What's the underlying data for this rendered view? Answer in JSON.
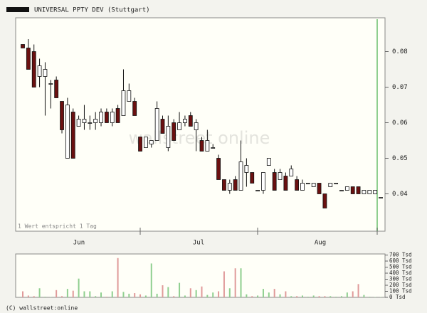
{
  "chart_data": {
    "type": "candlestick",
    "title": "UNIVERSAL PPTY DEV (Stuttgart)",
    "watermark": "wallstreet online",
    "note": "1 Wert entspricht 1 Tag",
    "copyright": "(C) wallstreet:online",
    "x_labels": [
      "Jun",
      "Jul",
      "Aug"
    ],
    "ylim": [
      0.0295,
      0.0895
    ],
    "yticks": [
      0.04,
      0.05,
      0.06,
      0.07,
      0.08
    ],
    "colors": {
      "up": "#ffffff",
      "down": "#6b1010",
      "volume_up": "#8fcf8f",
      "volume_down": "#e09a9a"
    },
    "ohlc": [
      [
        0.082,
        0.082,
        0.081,
        0.081
      ],
      [
        0.081,
        0.0835,
        0.075,
        0.075
      ],
      [
        0.08,
        0.082,
        0.07,
        0.07
      ],
      [
        0.073,
        0.078,
        0.07,
        0.076
      ],
      [
        0.073,
        0.077,
        0.062,
        0.075
      ],
      [
        0.071,
        0.072,
        0.064,
        0.071
      ],
      [
        0.072,
        0.073,
        0.067,
        0.067
      ],
      [
        0.066,
        0.066,
        0.057,
        0.058
      ],
      [
        0.05,
        0.067,
        0.05,
        0.065
      ],
      [
        0.063,
        0.064,
        0.05,
        0.05
      ],
      [
        0.059,
        0.062,
        0.059,
        0.061
      ],
      [
        0.06,
        0.065,
        0.058,
        0.061
      ],
      [
        0.06,
        0.062,
        0.058,
        0.06
      ],
      [
        0.06,
        0.063,
        0.058,
        0.061
      ],
      [
        0.06,
        0.064,
        0.059,
        0.063
      ],
      [
        0.063,
        0.064,
        0.06,
        0.06
      ],
      [
        0.06,
        0.064,
        0.059,
        0.063
      ],
      [
        0.064,
        0.065,
        0.06,
        0.06
      ],
      [
        0.062,
        0.075,
        0.062,
        0.069
      ],
      [
        0.066,
        0.071,
        0.066,
        0.069
      ],
      [
        0.066,
        0.067,
        0.062,
        0.062
      ],
      [
        0.056,
        0.056,
        0.052,
        0.052
      ],
      [
        0.053,
        0.056,
        0.053,
        0.056
      ],
      [
        0.054,
        0.055,
        0.053,
        0.055
      ],
      [
        0.055,
        0.066,
        0.055,
        0.064
      ],
      [
        0.061,
        0.062,
        0.057,
        0.057
      ],
      [
        0.053,
        0.062,
        0.052,
        0.059
      ],
      [
        0.06,
        0.061,
        0.055,
        0.055
      ],
      [
        0.058,
        0.063,
        0.058,
        0.06
      ],
      [
        0.06,
        0.062,
        0.059,
        0.061
      ],
      [
        0.062,
        0.063,
        0.059,
        0.059
      ],
      [
        0.058,
        0.061,
        0.052,
        0.06
      ],
      [
        0.055,
        0.056,
        0.052,
        0.052
      ],
      [
        0.052,
        0.058,
        0.052,
        0.055
      ],
      [
        0.053,
        0.054,
        0.053,
        0.053
      ],
      [
        0.05,
        0.051,
        0.044,
        0.044
      ],
      [
        0.044,
        0.044,
        0.041,
        0.041
      ],
      [
        0.041,
        0.044,
        0.04,
        0.043
      ],
      [
        0.044,
        0.045,
        0.041,
        0.041
      ],
      [
        0.041,
        0.055,
        0.041,
        0.049
      ],
      [
        0.046,
        0.05,
        0.042,
        0.048
      ],
      [
        0.046,
        0.046,
        0.043,
        0.043
      ],
      [
        0.041,
        0.041,
        0.041,
        0.041
      ],
      [
        0.041,
        0.046,
        0.04,
        0.046
      ],
      [
        0.048,
        0.05,
        0.048,
        0.05
      ],
      [
        0.046,
        0.047,
        0.041,
        0.041
      ],
      [
        0.044,
        0.047,
        0.044,
        0.046
      ],
      [
        0.045,
        0.046,
        0.041,
        0.041
      ],
      [
        0.045,
        0.048,
        0.045,
        0.047
      ],
      [
        0.044,
        0.045,
        0.041,
        0.041
      ],
      [
        0.041,
        0.044,
        0.041,
        0.043
      ],
      [
        0.043,
        0.043,
        0.043,
        0.043
      ],
      [
        0.042,
        0.043,
        0.042,
        0.043
      ],
      [
        0.043,
        0.043,
        0.04,
        0.04
      ],
      [
        0.04,
        0.04,
        0.036,
        0.036
      ],
      [
        0.042,
        0.043,
        0.042,
        0.043
      ],
      [
        0.043,
        0.043,
        0.043,
        0.043
      ],
      [
        0.041,
        0.041,
        0.041,
        0.041
      ],
      [
        0.041,
        0.042,
        0.041,
        0.042
      ],
      [
        0.042,
        0.042,
        0.04,
        0.04
      ],
      [
        0.042,
        0.042,
        0.04,
        0.04
      ],
      [
        0.04,
        0.041,
        0.04,
        0.041
      ],
      [
        0.04,
        0.041,
        0.04,
        0.041
      ],
      [
        0.04,
        0.041,
        0.04,
        0.041
      ],
      [
        0.039,
        0.039,
        0.039,
        0.039
      ]
    ],
    "volume": [
      100,
      30,
      20,
      150,
      10,
      5,
      120,
      20,
      140,
      110,
      310,
      100,
      100,
      20,
      80,
      10,
      100,
      650,
      90,
      60,
      70,
      50,
      30,
      560,
      60,
      200,
      170,
      20,
      240,
      30,
      150,
      120,
      180,
      40,
      80,
      100,
      430,
      150,
      480,
      480,
      50,
      20,
      30,
      140,
      80,
      140,
      50,
      100,
      20,
      20,
      30,
      10,
      30,
      20,
      20,
      20,
      10,
      20,
      80,
      100,
      220,
      40,
      10,
      5,
      5
    ],
    "y2lim": [
      0,
      700
    ],
    "y2ticks": [
      {
        "value": 0,
        "label": "0 Tsd"
      },
      {
        "value": 100,
        "label": "100 Tsd"
      },
      {
        "value": 200,
        "label": "200 Tsd"
      },
      {
        "value": 300,
        "label": "300 Tsd"
      },
      {
        "value": 400,
        "label": "400 Tsd"
      },
      {
        "value": 500,
        "label": "500 Tsd"
      },
      {
        "value": 600,
        "label": "600 Tsd"
      },
      {
        "value": 700,
        "label": "700 Tsd"
      }
    ]
  }
}
